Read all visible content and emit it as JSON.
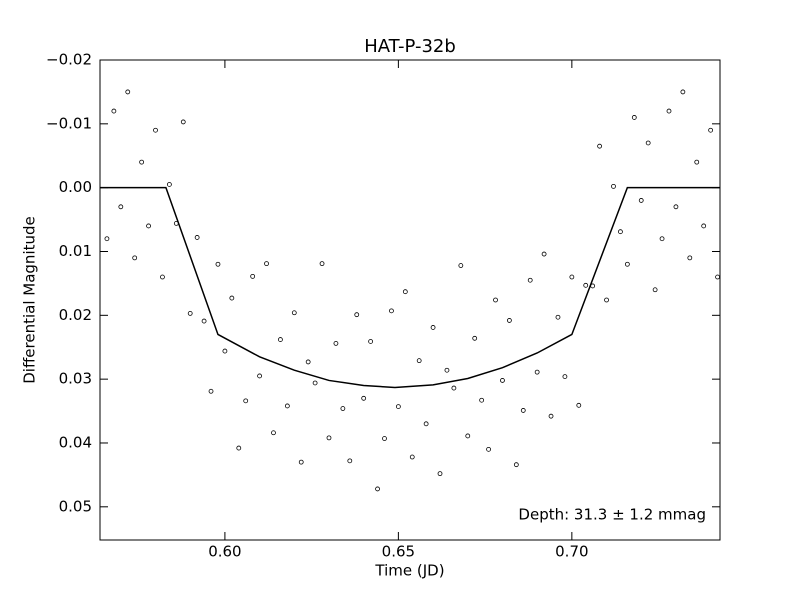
{
  "chart_data": {
    "type": "scatter",
    "title": "HAT-P-32b",
    "xlabel": "Time (JD)",
    "ylabel": "Differential Magnitude",
    "annotation": "Depth: 31.3 ± 1.2 mmag",
    "xlim": [
      0.564,
      0.7427
    ],
    "ylim": [
      -0.02,
      0.0552
    ],
    "y_inverted": true,
    "xticks": [
      {
        "value": 0.6,
        "label": "0.60"
      },
      0.65,
      {
        "value": 0.7,
        "label": "0.70"
      }
    ],
    "yticks": [
      {
        "value": -0.02,
        "label": "−0.02"
      },
      {
        "value": -0.01,
        "label": "−0.01"
      },
      {
        "value": 0,
        "label": "0.00"
      },
      0.01,
      0.02,
      0.03,
      0.04,
      0.05
    ],
    "grid": false,
    "series": [
      {
        "mode": "markers",
        "color": "#000000",
        "x": [
          0.566,
          0.568,
          0.57,
          0.572,
          0.574,
          0.576,
          0.578,
          0.58,
          0.582,
          0.584,
          0.586,
          0.588,
          0.59,
          0.592,
          0.594,
          0.596,
          0.598,
          0.6,
          0.602,
          0.604,
          0.606,
          0.608,
          0.61,
          0.612,
          0.614,
          0.616,
          0.618,
          0.62,
          0.622,
          0.624,
          0.626,
          0.628,
          0.63,
          0.632,
          0.634,
          0.636,
          0.638,
          0.64,
          0.642,
          0.644,
          0.646,
          0.648,
          0.65,
          0.652,
          0.654,
          0.656,
          0.658,
          0.66,
          0.662,
          0.664,
          0.666,
          0.668,
          0.67,
          0.672,
          0.674,
          0.676,
          0.678,
          0.68,
          0.682,
          0.684,
          0.686,
          0.688,
          0.69,
          0.692,
          0.694,
          0.696,
          0.698,
          0.7,
          0.702,
          0.704,
          0.706,
          0.708,
          0.71,
          0.712,
          0.714,
          0.716,
          0.718,
          0.72,
          0.722,
          0.724,
          0.726,
          0.728,
          0.73,
          0.732,
          0.734,
          0.736,
          0.738,
          0.74,
          0.742
        ],
        "values": [
          0.008,
          -0.012,
          0.003,
          -0.015,
          0.011,
          -0.004,
          0.006,
          -0.009,
          0.014,
          -0.0005,
          0.0056,
          -0.0103,
          0.0197,
          0.0078,
          0.0209,
          0.0319,
          0.012,
          0.0256,
          0.0173,
          0.0408,
          0.0334,
          0.0139,
          0.0295,
          0.0119,
          0.0384,
          0.0238,
          0.0342,
          0.0196,
          0.043,
          0.0273,
          0.0306,
          0.0119,
          0.0392,
          0.0244,
          0.0346,
          0.0428,
          0.0199,
          0.033,
          0.0241,
          0.0472,
          0.0393,
          0.0193,
          0.0343,
          0.0163,
          0.0422,
          0.0271,
          0.037,
          0.0219,
          0.0448,
          0.0286,
          0.0314,
          0.0122,
          0.0389,
          0.0236,
          0.0333,
          0.041,
          0.0176,
          0.0302,
          0.0208,
          0.0434,
          0.0349,
          0.0145,
          0.0289,
          0.0104,
          0.0358,
          0.0203,
          0.0296,
          0.014,
          0.0341,
          0.0153,
          0.0154,
          -0.0065,
          0.0176,
          -0.0002,
          0.0069,
          0.012,
          -0.011,
          0.002,
          -0.007,
          0.016,
          0.008,
          -0.012,
          0.003,
          -0.015,
          0.011,
          -0.004,
          0.006,
          -0.009,
          0.014
        ]
      },
      {
        "mode": "line",
        "color": "#000000",
        "x": [
          0.564,
          0.583,
          0.598,
          0.61,
          0.62,
          0.63,
          0.64,
          0.649,
          0.66,
          0.67,
          0.68,
          0.69,
          0.7,
          0.716,
          0.7427
        ],
        "values": [
          0,
          0,
          0.023,
          0.0265,
          0.0286,
          0.0302,
          0.031,
          0.0313,
          0.0309,
          0.0299,
          0.0282,
          0.0259,
          0.023,
          0,
          0
        ]
      }
    ]
  }
}
